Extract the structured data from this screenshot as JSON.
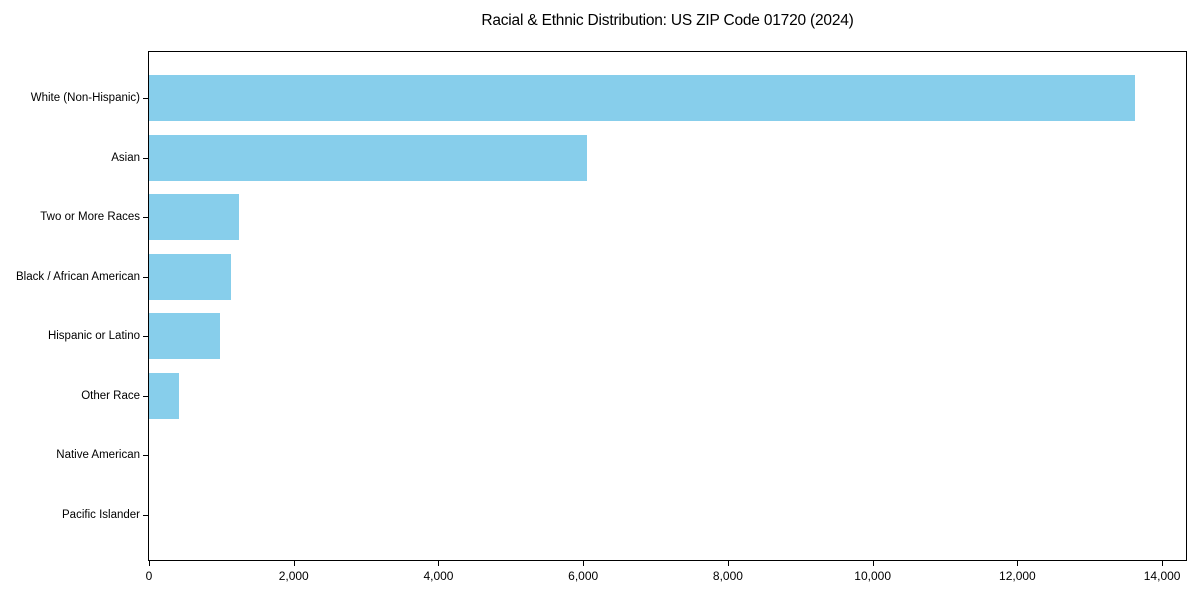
{
  "figure": {
    "background_color": "#FFFFFF",
    "axis_color": "#000000",
    "text_color": "#000000"
  },
  "chart_data": {
    "type": "bar",
    "orientation": "horizontal",
    "title": "Racial & Ethnic Distribution: US ZIP Code 01720 (2024)",
    "xlabel": "",
    "ylabel": "",
    "categories": [
      "White (Non-Hispanic)",
      "Asian",
      "Two or More Races",
      "Black / African American",
      "Hispanic or Latino",
      "Other Race",
      "Native American",
      "Pacific Islander"
    ],
    "values": [
      13630,
      6050,
      1250,
      1130,
      980,
      410,
      0,
      0
    ],
    "bar_color": "#87CEEB",
    "xlim": [
      0,
      14330
    ],
    "xticks": [
      0,
      2000,
      4000,
      6000,
      8000,
      10000,
      12000,
      14000
    ],
    "xtick_labels": [
      "0",
      "2,000",
      "4,000",
      "6,000",
      "8,000",
      "10,000",
      "12,000",
      "14,000"
    ],
    "grid": false,
    "legend": null,
    "category_order": "largest value at top, zero-value categories shown with no visible bar"
  }
}
